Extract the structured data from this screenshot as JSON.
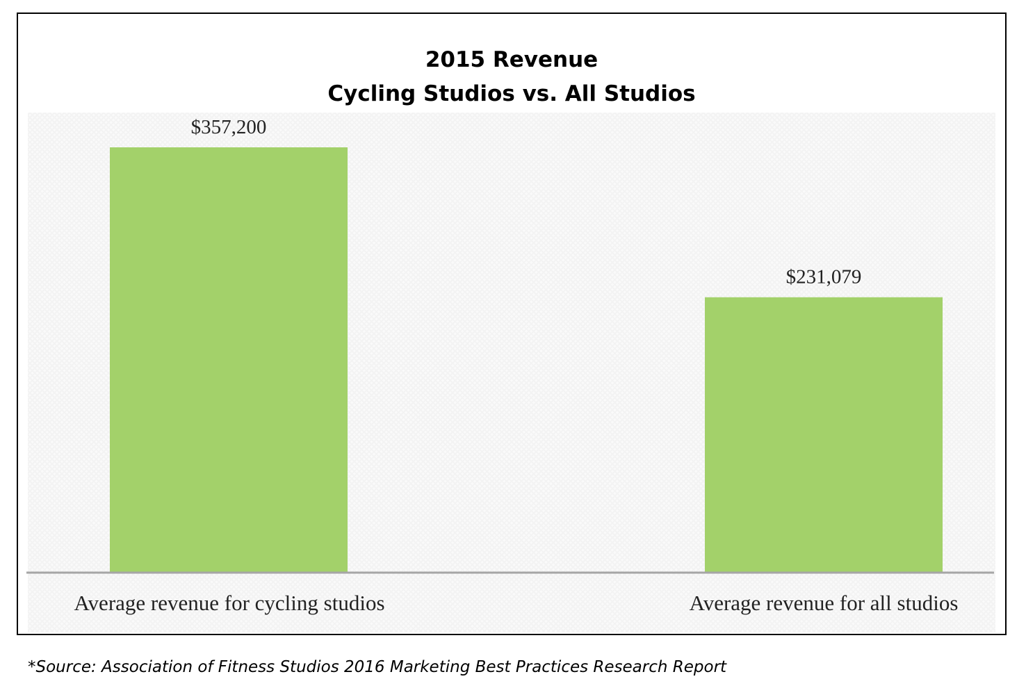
{
  "chart_data": {
    "type": "bar",
    "title": "2015 Revenue",
    "subtitle": "Cycling Studios vs. All Studios",
    "categories": [
      "Average revenue for cycling studios",
      "Average revenue for all studios"
    ],
    "values": [
      357200,
      231079
    ],
    "data_labels": [
      "$357,200",
      "$231,079"
    ],
    "xlabel": "",
    "ylabel": "",
    "grid": false,
    "colors": {
      "bar": "#a3d16a",
      "baseline": "#a6a6a6"
    }
  },
  "footnote": "*Source: Association of Fitness Studios 2016 Marketing Best Practices Research Report"
}
